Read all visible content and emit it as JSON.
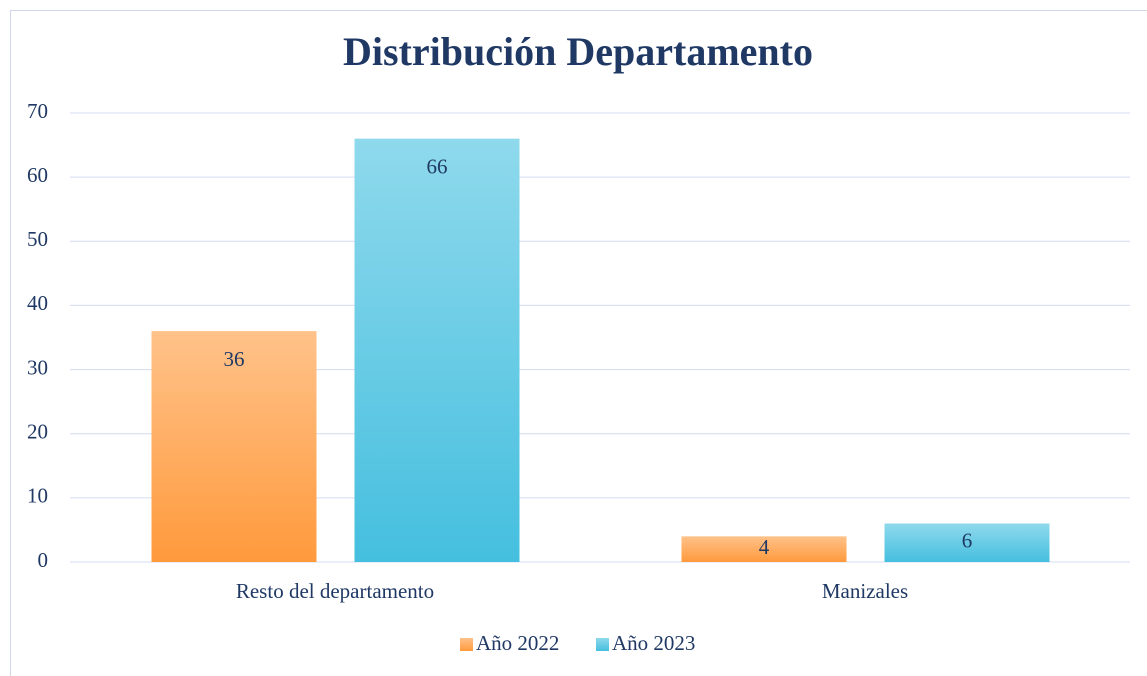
{
  "chart_data": {
    "type": "bar",
    "title": "Distribución Departamento",
    "categories": [
      "Resto del departamento",
      "Manizales"
    ],
    "series": [
      {
        "name": "Año 2022",
        "color": "#ff9a3c",
        "values": [
          36,
          4
        ]
      },
      {
        "name": "Año 2023",
        "color": "#45bfdf",
        "values": [
          66,
          6
        ]
      }
    ],
    "ylim": [
      0,
      70
    ],
    "yticks": [
      0,
      10,
      20,
      30,
      40,
      50,
      60,
      70
    ],
    "grid": true,
    "legend": "bottom"
  }
}
